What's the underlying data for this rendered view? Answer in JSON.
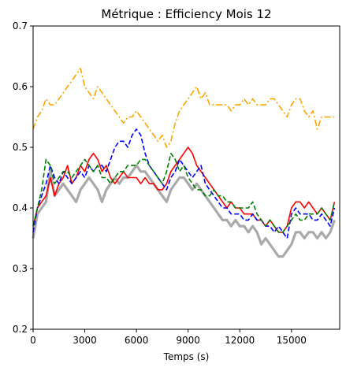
{
  "chart_data": {
    "type": "line",
    "title": "Métrique : Efficiency Mois 12",
    "xlabel": "Temps (s)",
    "ylabel": "",
    "xlim": [
      0,
      17800
    ],
    "ylim": [
      0.2,
      0.7
    ],
    "xticks": [
      0,
      3000,
      6000,
      9000,
      12000,
      15000
    ],
    "xtick_labels": [
      "0",
      "3000",
      "6000",
      "9000",
      "12000",
      "15000"
    ],
    "yticks": [
      0.2,
      0.3,
      0.4,
      0.5,
      0.6,
      0.7
    ],
    "ytick_labels": [
      "0.2",
      "0.3",
      "0.4",
      "0.5",
      "0.6",
      "0.7"
    ],
    "grid": false,
    "legend": "none",
    "x": [
      0,
      250,
      500,
      750,
      1000,
      1250,
      1500,
      1750,
      2000,
      2250,
      2500,
      2750,
      3000,
      3250,
      3500,
      3750,
      4000,
      4250,
      4500,
      4750,
      5000,
      5250,
      5500,
      5750,
      6000,
      6250,
      6500,
      6750,
      7000,
      7250,
      7500,
      7750,
      8000,
      8250,
      8500,
      8750,
      9000,
      9250,
      9500,
      9750,
      10000,
      10250,
      10500,
      10750,
      11000,
      11250,
      11500,
      11750,
      12000,
      12250,
      12500,
      12750,
      13000,
      13250,
      13500,
      13750,
      14000,
      14250,
      14500,
      14750,
      15000,
      15250,
      15500,
      15750,
      16000,
      16250,
      16500,
      16750,
      17000,
      17250,
      17500
    ],
    "series": [
      {
        "color": "#aaaaaa",
        "style": "solid",
        "width": 3.2,
        "values": [
          0.35,
          0.39,
          0.4,
          0.41,
          0.46,
          0.42,
          0.43,
          0.44,
          0.43,
          0.42,
          0.41,
          0.43,
          0.44,
          0.45,
          0.44,
          0.43,
          0.41,
          0.43,
          0.44,
          0.45,
          0.44,
          0.45,
          0.45,
          0.46,
          0.47,
          0.46,
          0.46,
          0.45,
          0.44,
          0.43,
          0.42,
          0.41,
          0.43,
          0.44,
          0.45,
          0.45,
          0.44,
          0.43,
          0.44,
          0.43,
          0.42,
          0.41,
          0.4,
          0.39,
          0.38,
          0.38,
          0.37,
          0.38,
          0.37,
          0.37,
          0.36,
          0.37,
          0.36,
          0.34,
          0.35,
          0.34,
          0.33,
          0.32,
          0.32,
          0.33,
          0.34,
          0.36,
          0.36,
          0.35,
          0.36,
          0.36,
          0.35,
          0.36,
          0.35,
          0.36,
          0.38
        ]
      },
      {
        "color": "#ff0000",
        "style": "solid",
        "width": 1.6,
        "values": [
          0.37,
          0.4,
          0.41,
          0.42,
          0.45,
          0.42,
          0.44,
          0.45,
          0.47,
          0.44,
          0.45,
          0.47,
          0.46,
          0.48,
          0.49,
          0.48,
          0.46,
          0.47,
          0.45,
          0.44,
          0.45,
          0.46,
          0.45,
          0.45,
          0.45,
          0.44,
          0.45,
          0.44,
          0.44,
          0.43,
          0.43,
          0.44,
          0.46,
          0.47,
          0.48,
          0.49,
          0.5,
          0.49,
          0.47,
          0.46,
          0.45,
          0.44,
          0.43,
          0.42,
          0.41,
          0.4,
          0.41,
          0.4,
          0.4,
          0.39,
          0.39,
          0.39,
          0.38,
          0.38,
          0.37,
          0.38,
          0.37,
          0.36,
          0.36,
          0.37,
          0.4,
          0.41,
          0.41,
          0.4,
          0.41,
          0.4,
          0.39,
          0.4,
          0.39,
          0.38,
          0.41
        ]
      },
      {
        "color": "#0000ff",
        "style": "dashed",
        "width": 1.6,
        "values": [
          0.36,
          0.4,
          0.42,
          0.44,
          0.47,
          0.45,
          0.44,
          0.46,
          0.45,
          0.44,
          0.45,
          0.46,
          0.45,
          0.47,
          0.46,
          0.47,
          0.47,
          0.46,
          0.48,
          0.5,
          0.51,
          0.51,
          0.5,
          0.52,
          0.53,
          0.52,
          0.49,
          0.47,
          0.46,
          0.45,
          0.44,
          0.43,
          0.45,
          0.46,
          0.48,
          0.47,
          0.46,
          0.45,
          0.46,
          0.47,
          0.44,
          0.43,
          0.42,
          0.41,
          0.4,
          0.4,
          0.39,
          0.39,
          0.39,
          0.38,
          0.38,
          0.39,
          0.38,
          0.38,
          0.37,
          0.37,
          0.36,
          0.37,
          0.36,
          0.35,
          0.39,
          0.4,
          0.39,
          0.39,
          0.39,
          0.38,
          0.38,
          0.39,
          0.38,
          0.37,
          0.4
        ]
      },
      {
        "color": "#008000",
        "style": "dashed",
        "width": 1.6,
        "values": [
          0.37,
          0.4,
          0.43,
          0.48,
          0.47,
          0.44,
          0.45,
          0.46,
          0.46,
          0.45,
          0.46,
          0.47,
          0.48,
          0.47,
          0.46,
          0.47,
          0.45,
          0.45,
          0.44,
          0.45,
          0.46,
          0.46,
          0.47,
          0.47,
          0.47,
          0.48,
          0.48,
          0.47,
          0.46,
          0.45,
          0.44,
          0.46,
          0.49,
          0.48,
          0.46,
          0.47,
          0.45,
          0.44,
          0.43,
          0.43,
          0.42,
          0.42,
          0.43,
          0.42,
          0.42,
          0.41,
          0.41,
          0.4,
          0.4,
          0.4,
          0.4,
          0.41,
          0.39,
          0.38,
          0.37,
          0.38,
          0.37,
          0.36,
          0.36,
          0.37,
          0.38,
          0.39,
          0.38,
          0.38,
          0.39,
          0.39,
          0.39,
          0.4,
          0.39,
          0.38,
          0.41
        ]
      },
      {
        "color": "#ffa500",
        "style": "dashdot",
        "width": 1.6,
        "values": [
          0.53,
          0.55,
          0.56,
          0.58,
          0.57,
          0.57,
          0.58,
          0.59,
          0.6,
          0.61,
          0.62,
          0.63,
          0.6,
          0.59,
          0.58,
          0.6,
          0.59,
          0.58,
          0.57,
          0.56,
          0.55,
          0.54,
          0.55,
          0.55,
          0.56,
          0.55,
          0.54,
          0.53,
          0.52,
          0.51,
          0.52,
          0.5,
          0.51,
          0.54,
          0.56,
          0.57,
          0.58,
          0.59,
          0.6,
          0.58,
          0.59,
          0.57,
          0.57,
          0.57,
          0.57,
          0.57,
          0.56,
          0.57,
          0.57,
          0.58,
          0.57,
          0.58,
          0.57,
          0.57,
          0.57,
          0.58,
          0.58,
          0.57,
          0.56,
          0.55,
          0.57,
          0.58,
          0.58,
          0.56,
          0.55,
          0.56,
          0.53,
          0.55,
          0.55,
          0.55,
          0.55
        ]
      }
    ]
  }
}
